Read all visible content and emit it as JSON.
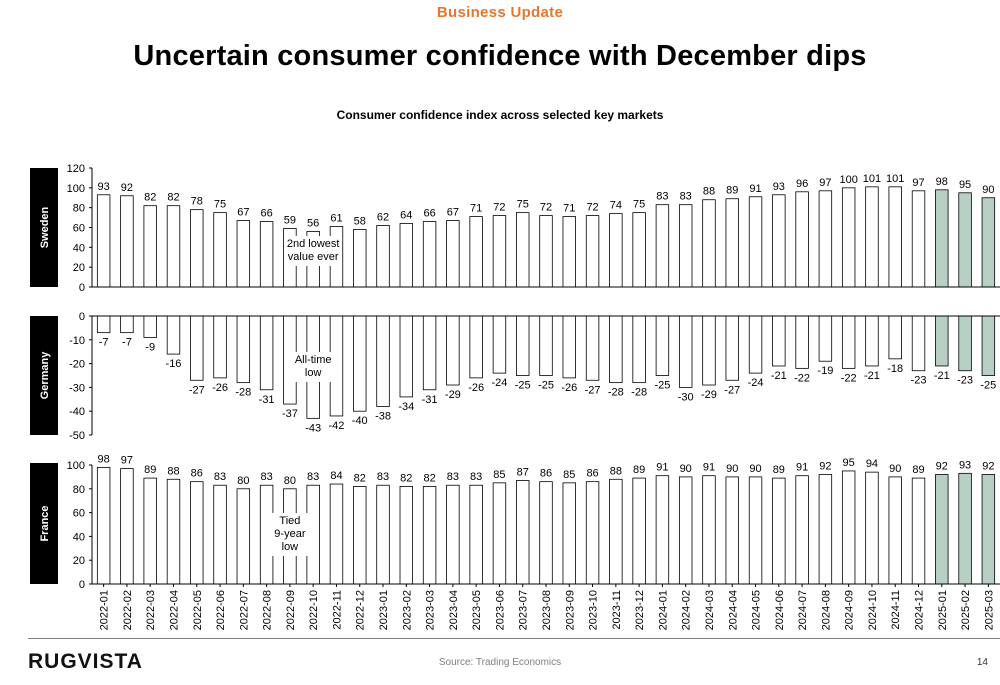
{
  "header": {
    "kicker": "Business Update",
    "title": "Uncertain consumer confidence with December dips"
  },
  "footer": {
    "logo": "RUGVISTA",
    "source": "Source: Trading Economics",
    "page_number": "14"
  },
  "colors": {
    "kicker": "#e8762c",
    "bar_fill": "#ffffff",
    "bar_highlight": "#b8d0c4",
    "bar_stroke": "#000000",
    "panel_label_bg": "#000000",
    "panel_label_text": "#ffffff"
  },
  "chart_data": {
    "type": "bar",
    "title": "Consumer confidence index across selected key markets",
    "categories": [
      "2022-01",
      "2022-02",
      "2022-03",
      "2022-04",
      "2022-05",
      "2022-06",
      "2022-07",
      "2022-08",
      "2022-09",
      "2022-10",
      "2022-11",
      "2022-12",
      "2023-01",
      "2023-02",
      "2023-03",
      "2023-04",
      "2023-05",
      "2023-06",
      "2023-07",
      "2023-08",
      "2023-09",
      "2023-10",
      "2023-11",
      "2023-12",
      "2024-01",
      "2024-02",
      "2024-03",
      "2024-04",
      "2024-05",
      "2024-06",
      "2024-07",
      "2024-08",
      "2024-09",
      "2024-10",
      "2024-11",
      "2024-12",
      "2025-01",
      "2025-02",
      "2025-03"
    ],
    "highlight_categories": [
      "2025-01",
      "2025-02",
      "2025-03"
    ],
    "grid": false,
    "panels": [
      {
        "name": "Sweden",
        "ylim": [
          0,
          120
        ],
        "yticks": [
          0,
          20,
          40,
          60,
          80,
          100,
          120
        ],
        "values": [
          93,
          92,
          82,
          82,
          78,
          75,
          67,
          66,
          59,
          56,
          61,
          58,
          62,
          64,
          66,
          67,
          71,
          72,
          75,
          72,
          71,
          72,
          74,
          75,
          83,
          83,
          88,
          89,
          91,
          93,
          96,
          97,
          100,
          101,
          101,
          97,
          98,
          95,
          90
        ],
        "annotation": {
          "category": "2022-10",
          "lines": [
            "2nd lowest",
            "value ever"
          ]
        }
      },
      {
        "name": "Germany",
        "ylim": [
          -50,
          0
        ],
        "yticks": [
          0,
          -10,
          -20,
          -30,
          -40,
          -50
        ],
        "values": [
          -7,
          -7,
          -9,
          -16,
          -27,
          -26,
          -28,
          -31,
          -37,
          -43,
          -42,
          -40,
          -38,
          -34,
          -31,
          -29,
          -26,
          -24,
          -25,
          -25,
          -26,
          -27,
          -28,
          -28,
          -25,
          -30,
          -29,
          -27,
          -24,
          -21,
          -22,
          -19,
          -22,
          -21,
          -18,
          -23,
          -21,
          -23,
          -25
        ],
        "annotation": {
          "category": "2022-10",
          "lines": [
            "All-time",
            "low"
          ]
        }
      },
      {
        "name": "France",
        "ylim": [
          0,
          100
        ],
        "yticks": [
          0,
          20,
          40,
          60,
          80,
          100
        ],
        "values": [
          98,
          97,
          89,
          88,
          86,
          83,
          80,
          83,
          80,
          83,
          84,
          82,
          83,
          82,
          82,
          83,
          83,
          85,
          87,
          86,
          85,
          86,
          88,
          89,
          91,
          90,
          91,
          90,
          90,
          89,
          91,
          92,
          95,
          94,
          90,
          89,
          92,
          93,
          92
        ],
        "annotation": {
          "category": "2022-09",
          "lines": [
            "Tied",
            "9-year",
            "low"
          ]
        }
      }
    ]
  }
}
